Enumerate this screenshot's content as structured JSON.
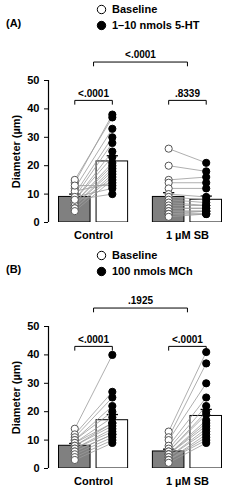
{
  "chart_data": [
    {
      "type": "bar",
      "panel_label": "(A)",
      "y_label": "Diameter (µm)",
      "categories": [
        "Control",
        "1 µM SB"
      ],
      "ylim": [
        0,
        50
      ],
      "yticks": [
        0,
        10,
        20,
        30,
        40,
        50
      ],
      "comparisons": {
        "within": [
          "<.0001",
          ".8339"
        ],
        "between": "<.0001"
      },
      "series": [
        {
          "name": "Baseline",
          "color": "#808080",
          "marker": "open circle",
          "values": [
            9,
            9
          ],
          "errors": [
            1.0,
            1.5
          ],
          "points": [
            [
              14,
              15,
              12,
              10,
              9,
              8,
              8,
              7,
              7,
              6,
              6,
              5,
              5,
              4,
              11,
              13,
              9,
              8
            ],
            [
              26,
              20,
              15,
              14,
              12,
              10,
              9,
              8,
              7,
              6,
              5,
              5,
              4,
              4,
              3,
              3,
              3,
              2
            ]
          ]
        },
        {
          "name": "1–10 nmols 5-HT",
          "color": "#ffffff",
          "marker": "filled circle",
          "values": [
            21.5,
            8
          ],
          "errors": [
            2.0,
            1.3
          ],
          "points": [
            [
              38,
              37,
              33,
              30,
              28,
              25,
              23,
              21,
              20,
              19,
              18,
              17,
              16,
              15,
              14,
              13,
              12,
              10
            ],
            [
              21,
              18,
              16,
              14,
              12,
              9,
              8,
              7,
              6,
              6,
              5,
              5,
              4,
              4,
              4,
              3,
              3,
              3
            ]
          ]
        }
      ]
    },
    {
      "type": "bar",
      "panel_label": "(B)",
      "y_label": "Diameter (µm)",
      "categories": [
        "Control",
        "1 µM SB"
      ],
      "ylim": [
        0,
        50
      ],
      "yticks": [
        0,
        10,
        20,
        30,
        40,
        50
      ],
      "comparisons": {
        "within": [
          "<.0001",
          "<.0001"
        ],
        "between": ".1925"
      },
      "series": [
        {
          "name": "Baseline",
          "color": "#808080",
          "marker": "open circle",
          "values": [
            8,
            6
          ],
          "errors": [
            0.8,
            0.8
          ],
          "points": [
            [
              14,
              12,
              11,
              10,
              10,
              9,
              9,
              8,
              8,
              7,
              7,
              6,
              6,
              5,
              4,
              3
            ],
            [
              13,
              11,
              10,
              8,
              7,
              6,
              6,
              5,
              5,
              5,
              4,
              4,
              3,
              3,
              3,
              2
            ]
          ]
        },
        {
          "name": "100 nmols MCh",
          "color": "#ffffff",
          "marker": "filled circle",
          "values": [
            17,
            18.5
          ],
          "errors": [
            2.0,
            2.3
          ],
          "points": [
            [
              40,
              27,
              25,
              22,
              20,
              18,
              16,
              16,
              15,
              14,
              13,
              12,
              12,
              11,
              10,
              9
            ],
            [
              41,
              37,
              30,
              25,
              22,
              20,
              19,
              17,
              16,
              15,
              14,
              13,
              12,
              11,
              10,
              9
            ]
          ]
        }
      ]
    }
  ]
}
